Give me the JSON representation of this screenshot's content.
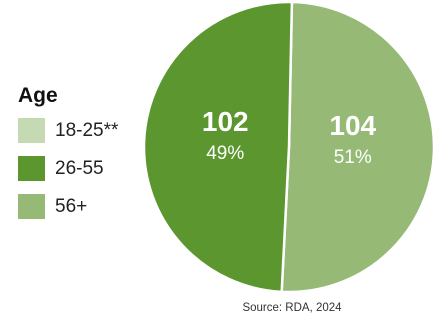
{
  "chart_data": {
    "type": "pie",
    "title": "",
    "legend_title": "Age",
    "legend_placement": "left",
    "categories": [
      "18-25**",
      "26-55",
      "56+"
    ],
    "colors": [
      "#c5d9b3",
      "#5b962f",
      "#96ba75"
    ],
    "values": [
      0,
      102,
      104
    ],
    "slice_labels": [
      null,
      {
        "value": "102",
        "percent": "49%"
      },
      {
        "value": "104",
        "percent": "51%"
      }
    ],
    "source": "Source: RDA, 2024"
  }
}
